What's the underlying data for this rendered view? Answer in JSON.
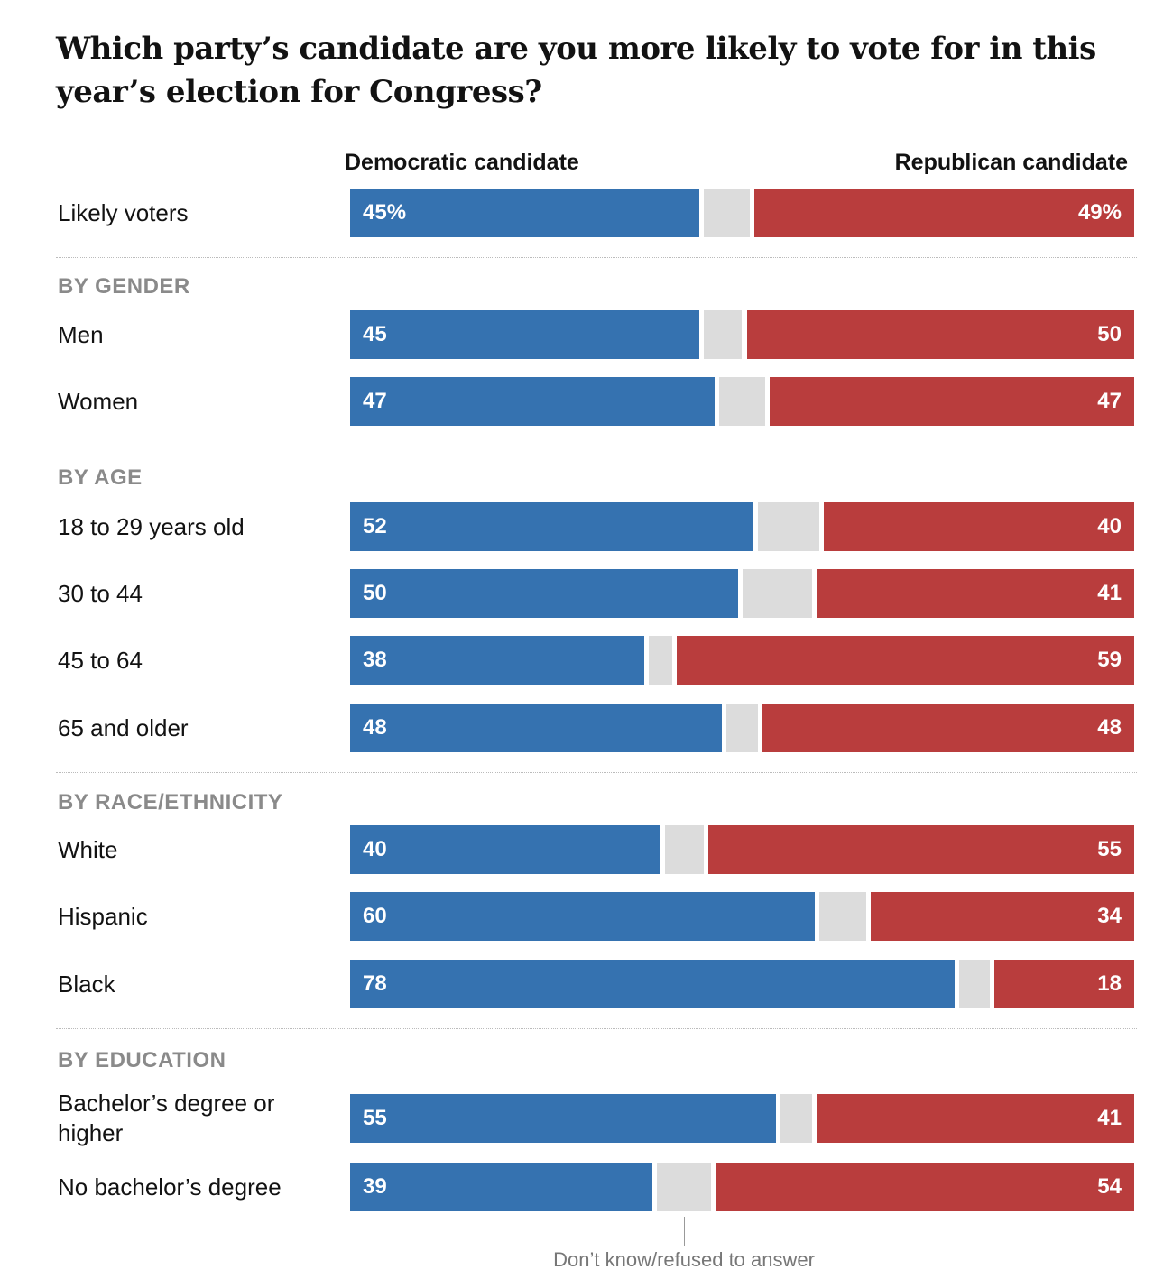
{
  "chart_data": {
    "type": "stacked-bar-horizontal",
    "title": "Which party’s candidate are you more likely to vote for in this year’s election for Congress?",
    "groups": [
      {
        "categories": [
          "Likely voters"
        ]
      },
      {
        "title": "BY GENDER",
        "categories": [
          "Men",
          "Women"
        ]
      },
      {
        "title": "BY AGE",
        "categories": [
          "18 to 29 years old",
          "30 to 44",
          "45 to 64",
          "65 and older"
        ]
      },
      {
        "title": "BY RACE/ETHNICITY",
        "categories": [
          "White",
          "Hispanic",
          "Black"
        ]
      },
      {
        "title": "BY EDUCATION",
        "categories": [
          "Bachelor’s degree or higher",
          "No bachelor’s degree"
        ]
      }
    ],
    "xlim": [
      0,
      100
    ],
    "series": [
      {
        "name": "Democratic candidate",
        "color": "#3572b0",
        "values": [
          45,
          45,
          47,
          52,
          50,
          38,
          48,
          40,
          60,
          78,
          55,
          39
        ],
        "value_labels": [
          "45%",
          "45",
          "47",
          "52",
          "50",
          "38",
          "48",
          "40",
          "60",
          "78",
          "55",
          "39"
        ]
      },
      {
        "name": "Don’t know/refused to answer",
        "color": "#dcdcdc",
        "values": [
          6,
          5,
          6,
          8,
          9,
          3,
          4,
          5,
          6,
          4,
          4,
          7
        ]
      },
      {
        "name": "Republican candidate",
        "color": "#b93d3d",
        "values": [
          49,
          50,
          47,
          40,
          41,
          59,
          48,
          55,
          34,
          18,
          41,
          54
        ],
        "value_labels": [
          "49%",
          "50",
          "47",
          "40",
          "41",
          "59",
          "48",
          "55",
          "34",
          "18",
          "41",
          "54"
        ]
      }
    ]
  }
}
